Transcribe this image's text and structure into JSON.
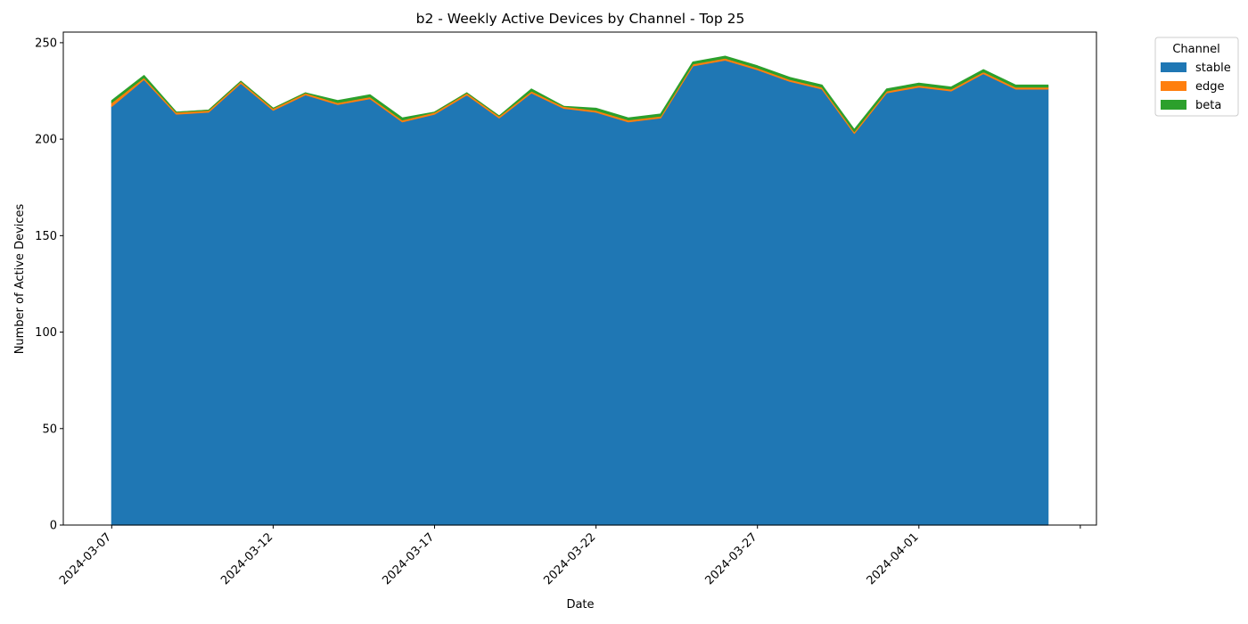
{
  "chart_data": {
    "type": "area",
    "stacked": true,
    "title": "b2 - Weekly Active Devices by Channel - Top 25",
    "xlabel": "Date",
    "ylabel": "Number of Active Devices",
    "x_start": "2024-03-07",
    "x": [
      "2024-03-07",
      "2024-03-08",
      "2024-03-09",
      "2024-03-10",
      "2024-03-11",
      "2024-03-12",
      "2024-03-13",
      "2024-03-14",
      "2024-03-15",
      "2024-03-16",
      "2024-03-17",
      "2024-03-18",
      "2024-03-19",
      "2024-03-20",
      "2024-03-21",
      "2024-03-22",
      "2024-03-23",
      "2024-03-24",
      "2024-03-25",
      "2024-03-26",
      "2024-03-27",
      "2024-03-28",
      "2024-03-29",
      "2024-03-30",
      "2024-03-31",
      "2024-04-01",
      "2024-04-02",
      "2024-04-03",
      "2024-04-04",
      "2024-04-05"
    ],
    "xlim": [
      "2024-03-05.5",
      "2024-04-05.5"
    ],
    "ylim": [
      0,
      255.5
    ],
    "x_ticks": [
      "2024-03-07",
      "2024-03-12",
      "2024-03-17",
      "2024-03-22",
      "2024-03-27",
      "2024-04-01"
    ],
    "y_ticks": [
      0,
      50,
      100,
      150,
      200,
      250
    ],
    "legend": {
      "title": "Channel",
      "position": "outside-top-right"
    },
    "series": [
      {
        "name": "stable",
        "color": "#1f77b4",
        "values": [
          217,
          231,
          213,
          214,
          229,
          215,
          223,
          218,
          221,
          209,
          213,
          223,
          211,
          224,
          216,
          214,
          209,
          211,
          238,
          241,
          236,
          230,
          226,
          203,
          224,
          227,
          225,
          234,
          226,
          226
        ]
      },
      {
        "name": "edge",
        "color": "#ff7f0e",
        "values": [
          2,
          1,
          1,
          1,
          1,
          1,
          1,
          1,
          1,
          1,
          1,
          1,
          1,
          1,
          1,
          1,
          1,
          1,
          1,
          1,
          1,
          1,
          1,
          1,
          1,
          1,
          1,
          1,
          1,
          1
        ]
      },
      {
        "name": "beta",
        "color": "#2ca02c",
        "values": [
          1,
          1,
          0,
          0,
          0,
          0,
          0,
          1,
          1,
          1,
          0,
          0,
          0,
          1,
          0,
          1,
          1,
          1,
          1,
          1,
          1,
          1,
          1,
          1,
          1,
          1,
          1,
          1,
          1,
          1
        ]
      }
    ],
    "grid": false
  }
}
